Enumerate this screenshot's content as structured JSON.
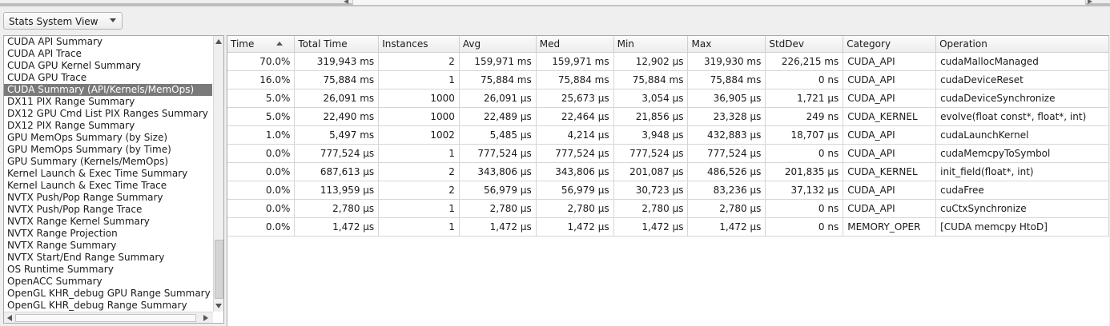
{
  "view_selector": {
    "selected": "Stats System View"
  },
  "reports": {
    "items": [
      "CUDA API Summary",
      "CUDA API Trace",
      "CUDA GPU Kernel Summary",
      "CUDA GPU Trace",
      "CUDA Summary (API/Kernels/MemOps)",
      "DX11 PIX Range Summary",
      "DX12 GPU Cmd List PIX Ranges Summary",
      "DX12 PIX Range Summary",
      "GPU MemOps Summary (by Size)",
      "GPU MemOps Summary (by Time)",
      "GPU Summary (Kernels/MemOps)",
      "Kernel Launch & Exec Time Summary",
      "Kernel Launch & Exec Time Trace",
      "NVTX Push/Pop Range Summary",
      "NVTX Push/Pop Range Trace",
      "NVTX Range Kernel Summary",
      "NVTX Range Projection",
      "NVTX Range Summary",
      "NVTX Start/End Range Summary",
      "OS Runtime Summary",
      "OpenACC Summary",
      "OpenGL KHR_debug GPU Range Summary",
      "OpenGL KHR_debug Range Summary"
    ],
    "selected_index": 4
  },
  "table": {
    "columns": [
      "Time",
      "Total Time",
      "Instances",
      "Avg",
      "Med",
      "Min",
      "Max",
      "StdDev",
      "Category",
      "Operation"
    ],
    "sorted_column": "Time",
    "rows": [
      [
        "70.0%",
        "319,943 ms",
        "2",
        "159,971 ms",
        "159,971 ms",
        "12,902 µs",
        "319,930 ms",
        "226,215 ms",
        "CUDA_API",
        "cudaMallocManaged"
      ],
      [
        "16.0%",
        "75,884 ms",
        "1",
        "75,884 ms",
        "75,884 ms",
        "75,884 ms",
        "75,884 ms",
        "0 ns",
        "CUDA_API",
        "cudaDeviceReset"
      ],
      [
        "5.0%",
        "26,091 ms",
        "1000",
        "26,091 µs",
        "25,673 µs",
        "3,054 µs",
        "36,905 µs",
        "1,721 µs",
        "CUDA_API",
        "cudaDeviceSynchronize"
      ],
      [
        "5.0%",
        "22,490 ms",
        "1000",
        "22,489 µs",
        "22,464 µs",
        "21,856 µs",
        "23,328 µs",
        "249 ns",
        "CUDA_KERNEL",
        "evolve(float const*, float*, int)"
      ],
      [
        "1.0%",
        "5,497 ms",
        "1002",
        "5,485 µs",
        "4,214 µs",
        "3,948 µs",
        "432,883 µs",
        "18,707 µs",
        "CUDA_API",
        "cudaLaunchKernel"
      ],
      [
        "0.0%",
        "777,524 µs",
        "1",
        "777,524 µs",
        "777,524 µs",
        "777,524 µs",
        "777,524 µs",
        "0 ns",
        "CUDA_API",
        "cudaMemcpyToSymbol"
      ],
      [
        "0.0%",
        "687,613 µs",
        "2",
        "343,806 µs",
        "343,806 µs",
        "201,087 µs",
        "486,526 µs",
        "201,835 µs",
        "CUDA_KERNEL",
        "init_field(float*, int)"
      ],
      [
        "0.0%",
        "113,959 µs",
        "2",
        "56,979 µs",
        "56,979 µs",
        "30,723 µs",
        "83,236 µs",
        "37,132 µs",
        "CUDA_API",
        "cudaFree"
      ],
      [
        "0.0%",
        "2,780 µs",
        "1",
        "2,780 µs",
        "2,780 µs",
        "2,780 µs",
        "2,780 µs",
        "0 ns",
        "CUDA_API",
        "cuCtxSynchronize"
      ],
      [
        "0.0%",
        "1,472 µs",
        "1",
        "1,472 µs",
        "1,472 µs",
        "1,472 µs",
        "1,472 µs",
        "0 ns",
        "MEMORY_OPER",
        "[CUDA memcpy HtoD]"
      ]
    ]
  }
}
